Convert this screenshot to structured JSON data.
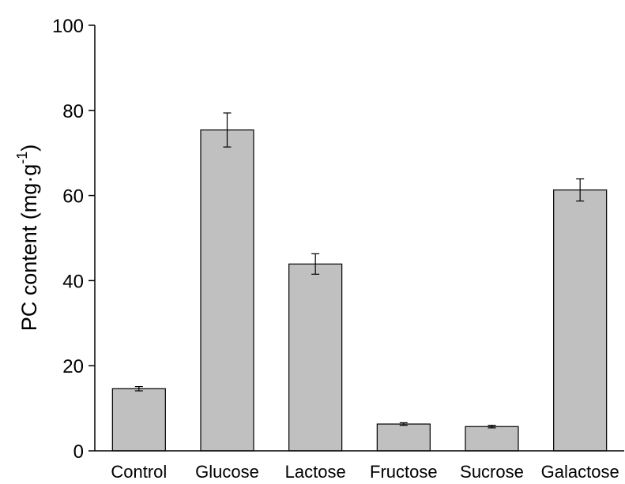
{
  "chart_data": {
    "type": "bar",
    "categories": [
      "Control",
      "Glucose",
      "Lactose",
      "Fructose",
      "Sucrose",
      "Galactose"
    ],
    "values": [
      14.6,
      75.4,
      43.9,
      6.3,
      5.7,
      61.3
    ],
    "errors": [
      0.5,
      4.0,
      2.4,
      0.3,
      0.3,
      2.6
    ],
    "ylabel": "PC content (mg·g",
    "ylabel_sup": "-1",
    "ylabel_close": ")",
    "xlabel": "",
    "title": "",
    "ylim": [
      0,
      100
    ],
    "yticks": [
      0,
      20,
      40,
      60,
      80,
      100
    ],
    "grid": false,
    "colors": {
      "bar_fill": "#c0c0c0",
      "bar_stroke": "#000000",
      "axis": "#000000"
    }
  }
}
